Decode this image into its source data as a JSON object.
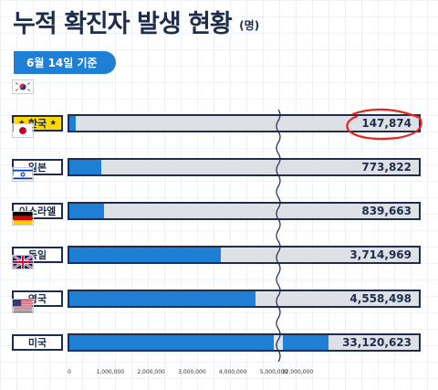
{
  "title": "누적 확진자 발생 현황",
  "title_unit": "(명)",
  "badge": "6월 14일 기준",
  "colors": {
    "bar": "#1f7fd4",
    "track": "#dde1e6",
    "border": "#1f2d4d",
    "highlight": "#ffd900",
    "circle": "#e0281e"
  },
  "chart_data": {
    "type": "bar",
    "orientation": "horizontal",
    "broken_axis": {
      "break_after": 5000000,
      "resume_at": 32000000
    },
    "categories": [
      "한국",
      "일본",
      "이스라엘",
      "독일",
      "영국",
      "미국"
    ],
    "values": [
      147874,
      773822,
      839663,
      3714969,
      4558498,
      33120623
    ],
    "value_labels": [
      "147,874",
      "773,822",
      "839,663",
      "3,714,969",
      "4,558,498",
      "33,120,623"
    ],
    "flags": [
      "korea-flag",
      "japan-flag",
      "israel-flag",
      "germany-flag",
      "uk-flag",
      "usa-flag"
    ],
    "highlight_index": 0,
    "x_ticks": [
      0,
      1000000,
      2000000,
      3000000,
      4000000,
      5000000,
      32000000
    ],
    "x_tick_labels": [
      "0",
      "1,000,000",
      "2,000,000",
      "3,000,000",
      "4,000,000",
      "5,000,000",
      "32,000,000"
    ]
  }
}
